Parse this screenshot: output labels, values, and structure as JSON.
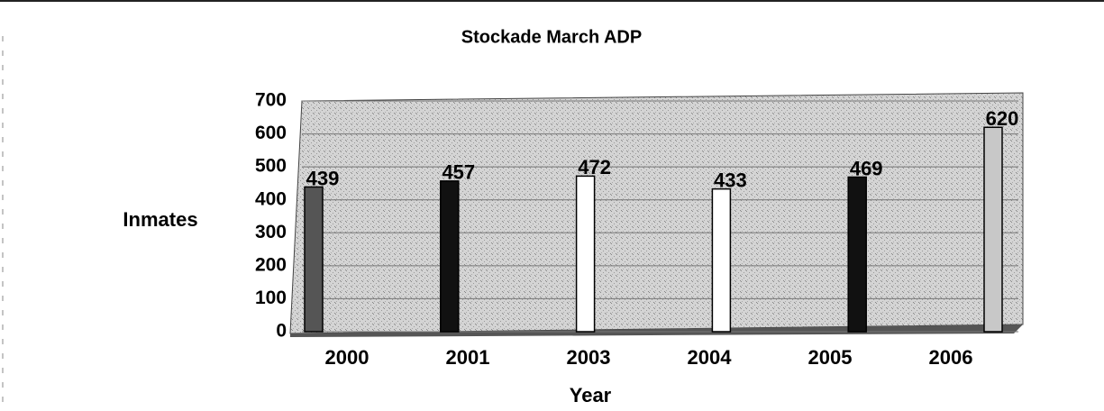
{
  "chart_data": {
    "type": "bar",
    "title": "Stockade March ADP",
    "x_label": "Year",
    "y_label": "Inmates",
    "categories": [
      "2000",
      "2001",
      "2003",
      "2004",
      "2005",
      "2006"
    ],
    "values": [
      439,
      457,
      472,
      433,
      469,
      620
    ],
    "colors": [
      "#555555",
      "#111111",
      "#ffffff",
      "#ffffff",
      "#111111",
      "#c8c8c8"
    ],
    "ylim": [
      0,
      700
    ],
    "yticks": [
      0,
      100,
      200,
      300,
      400,
      500,
      600,
      700
    ],
    "grid": true
  }
}
